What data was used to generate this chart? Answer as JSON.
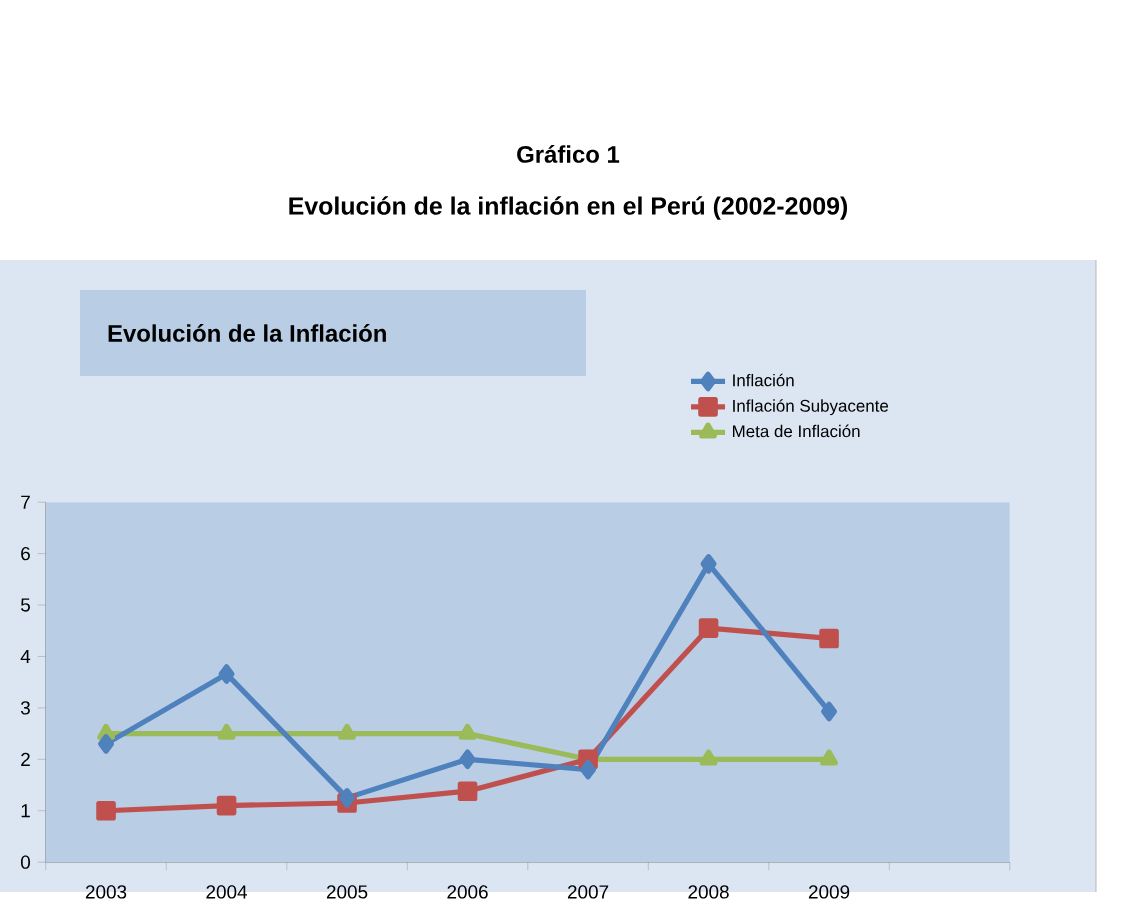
{
  "chart_data": {
    "type": "line",
    "title": "Gráfico 1",
    "subtitle": "Evolución de la inflación en el Perú (2002-2009)",
    "annotations": [
      "Evolución de la Inflación"
    ],
    "categories": [
      "2003",
      "2004",
      "2005",
      "2006",
      "2007",
      "2008",
      "2009",
      null
    ],
    "series": [
      {
        "name": "Inflación",
        "color": "#4f81bd",
        "marker": "diamond",
        "values": [
          2.3,
          3.66,
          1.25,
          2.0,
          1.8,
          5.8,
          2.93,
          null
        ]
      },
      {
        "name": "Inflación Subyacente",
        "color": "#c0504d",
        "marker": "square",
        "values": [
          1.0,
          1.1,
          1.15,
          1.38,
          2.0,
          4.55,
          4.35,
          null
        ]
      },
      {
        "name": "Meta de Inflación",
        "color": "#9bbb59",
        "marker": "triangle",
        "values": [
          2.5,
          2.5,
          2.5,
          2.5,
          2.0,
          2.0,
          2.0,
          null
        ]
      }
    ],
    "ylim": [
      0,
      7
    ],
    "yticks": [
      0,
      1,
      2,
      3,
      4,
      5,
      6,
      7
    ],
    "legend": "top right"
  }
}
